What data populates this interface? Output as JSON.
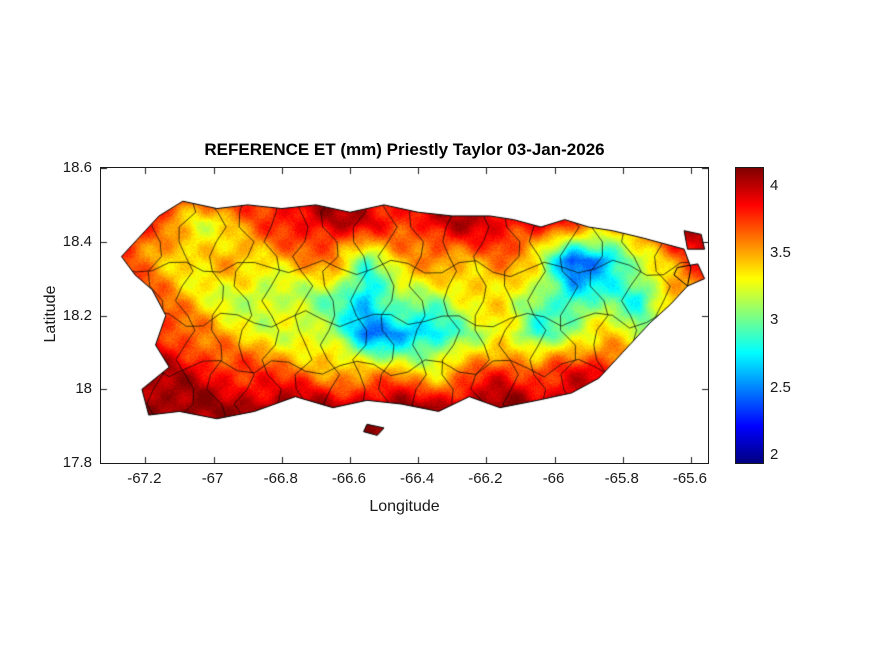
{
  "chart_data": {
    "type": "heatmap",
    "title": "REFERENCE ET (mm) Priestly Taylor 03-Jan-2026",
    "xlabel": "Longitude",
    "ylabel": "Latitude",
    "region": "Puerto Rico with municipal boundaries",
    "units": "mm",
    "xlim": [
      -67.33,
      -65.55
    ],
    "ylim": [
      17.8,
      18.6
    ],
    "x_ticks": [
      -67.2,
      -67,
      -66.8,
      -66.6,
      -66.4,
      -66.2,
      -66,
      -65.8,
      -65.6
    ],
    "y_ticks": [
      17.8,
      18,
      18.2,
      18.4,
      18.6
    ],
    "colormap": "jet",
    "colorbar": {
      "min": 1.94,
      "max": 4.13,
      "ticks": [
        2,
        2.5,
        3,
        3.5,
        4
      ]
    },
    "grid": {
      "lon_start": -67.25,
      "lon_step": 0.1,
      "lat_start": 18.55,
      "lat_step": -0.1,
      "et_mm": [
        [
          4.0,
          4.0,
          3.9,
          3.9,
          3.9,
          4.0,
          4.0,
          4.0,
          3.9,
          3.9,
          4.0,
          4.0,
          4.0,
          3.9,
          3.9,
          3.9,
          4.0,
          4.0
        ],
        [
          3.9,
          3.6,
          3.3,
          3.4,
          3.7,
          3.9,
          4.0,
          3.9,
          3.8,
          3.9,
          4.0,
          3.9,
          3.9,
          3.7,
          3.6,
          3.8,
          4.0,
          4.0
        ],
        [
          3.7,
          3.5,
          3.3,
          3.5,
          3.4,
          3.5,
          3.6,
          3.0,
          3.4,
          3.6,
          3.5,
          3.6,
          3.3,
          2.4,
          2.5,
          3.2,
          3.6,
          3.9
        ],
        [
          3.8,
          3.6,
          3.4,
          3.2,
          3.1,
          3.2,
          3.0,
          2.6,
          3.2,
          3.1,
          3.3,
          3.4,
          3.1,
          2.7,
          3.0,
          2.8,
          3.4,
          3.8
        ],
        [
          3.9,
          3.8,
          3.6,
          3.4,
          3.3,
          3.2,
          3.1,
          2.5,
          2.5,
          2.7,
          3.1,
          3.3,
          2.8,
          3.2,
          3.4,
          3.1,
          3.7,
          3.9
        ],
        [
          4.1,
          4.0,
          3.9,
          3.8,
          3.7,
          3.6,
          3.5,
          3.4,
          3.5,
          3.3,
          3.6,
          3.8,
          3.7,
          3.8,
          3.9,
          3.9,
          4.0,
          4.0
        ],
        [
          4.2,
          4.1,
          4.1,
          4.0,
          4.1,
          4.1,
          4.0,
          4.1,
          4.1,
          4.0,
          4.1,
          4.1,
          4.0,
          4.1,
          4.1,
          4.0,
          4.0,
          4.0
        ],
        [
          4.2,
          4.1,
          4.1,
          4.1,
          4.1,
          4.1,
          4.1,
          4.1,
          4.1,
          4.1,
          4.1,
          4.1,
          4.1,
          4.1,
          4.1,
          4.1,
          4.1,
          4.1
        ]
      ]
    }
  }
}
